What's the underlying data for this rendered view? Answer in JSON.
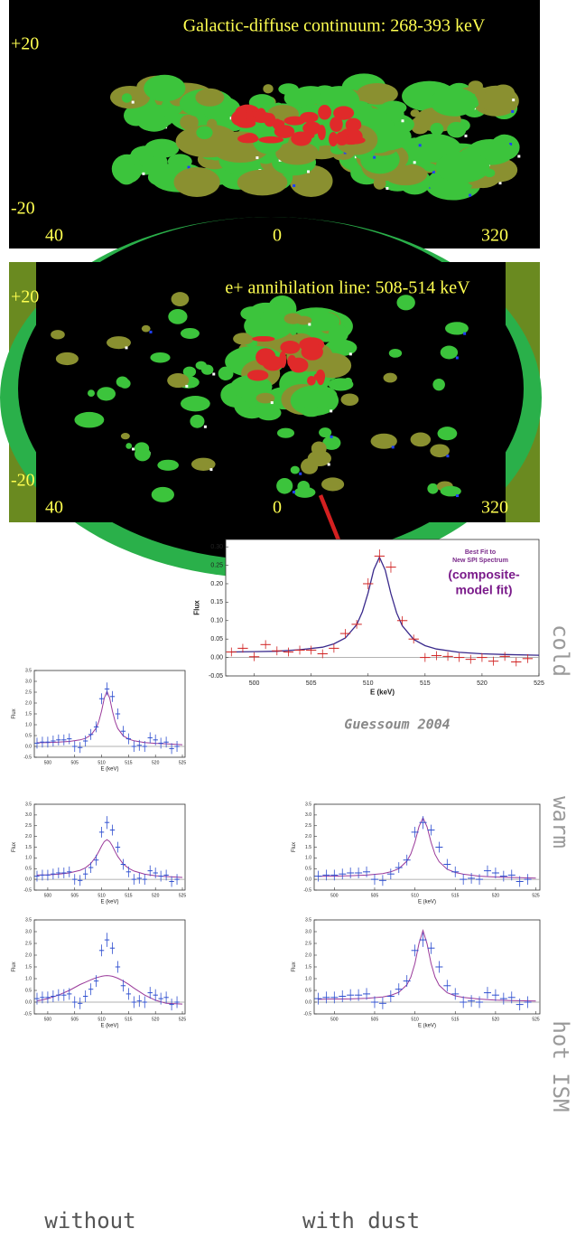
{
  "maps": [
    {
      "title": "Galactic-diffuse continuum: 268-393 keV",
      "lat_labels": [
        "+20",
        "-20"
      ],
      "lon_labels": [
        "40",
        "0",
        "320"
      ]
    },
    {
      "title": "e+ annihilation line: 508-514 keV",
      "lat_labels": [
        "+20",
        "-20"
      ],
      "lon_labels": [
        "40",
        "0",
        "320"
      ]
    }
  ],
  "labels": {
    "credit": "Guessoum 2004",
    "cold": "cold",
    "warm": "warm",
    "hot": "hot ISM",
    "without": "without",
    "with_dust": "with dust"
  },
  "chart_data": [
    {
      "type": "spectrum",
      "title": [
        "Best Fit to",
        "New SPI Spectrum"
      ],
      "annotation": [
        "(composite-",
        "model fit)"
      ],
      "xlabel": "E (keV)",
      "ylabel": "Flux",
      "xlim": [
        497.5,
        525
      ],
      "ylim": [
        -0.05,
        0.32
      ],
      "hline": 0,
      "xticks": [
        500,
        505,
        510,
        515,
        520,
        525
      ],
      "yticks": [
        -0.05,
        {
          "value": 0,
          "label": "0.00"
        },
        0.05,
        {
          "value": 0.1,
          "label": "0.10"
        },
        0.15,
        {
          "value": 0.2,
          "label": "0.20"
        },
        0.25,
        {
          "value": 0.3,
          "label": "0.30"
        }
      ],
      "points": {
        "color": "#d02020",
        "x": [
          498,
          499,
          500,
          501,
          502,
          503,
          504,
          505,
          506,
          507,
          508,
          509,
          510,
          511,
          512,
          513,
          514,
          515,
          516,
          517,
          518,
          519,
          520,
          521,
          522,
          523,
          524
        ],
        "values": [
          0.015,
          0.025,
          0.002,
          0.035,
          0.018,
          0.015,
          0.02,
          0.02,
          0.01,
          0.025,
          0.065,
          0.09,
          0.2,
          0.275,
          0.245,
          0.1,
          0.05,
          0.0,
          0.005,
          0.003,
          0.0,
          -0.005,
          0.0,
          -0.01,
          0.003,
          -0.012,
          -0.003
        ],
        "errors": [
          0.012,
          0.012,
          0.012,
          0.012,
          0.012,
          0.012,
          0.012,
          0.012,
          0.012,
          0.012,
          0.012,
          0.012,
          0.015,
          0.018,
          0.015,
          0.012,
          0.012,
          0.012,
          0.012,
          0.012,
          0.012,
          0.012,
          0.012,
          0.012,
          0.012,
          0.012,
          0.012
        ]
      },
      "curve": {
        "color": "#3a2a8c",
        "x": [
          498,
          500,
          502,
          504,
          506,
          507,
          508,
          509,
          509.5,
          510,
          510.5,
          511,
          511.5,
          512,
          512.5,
          513,
          514,
          515,
          516,
          518,
          520,
          522,
          525
        ],
        "values": [
          0.015,
          0.016,
          0.017,
          0.021,
          0.028,
          0.037,
          0.053,
          0.089,
          0.124,
          0.175,
          0.238,
          0.272,
          0.237,
          0.173,
          0.121,
          0.086,
          0.049,
          0.032,
          0.023,
          0.014,
          0.01,
          0.008,
          0.006
        ]
      }
    },
    {
      "type": "spectrum",
      "xlabel": "E (keV)",
      "ylabel": "Flux",
      "xlim": [
        497.5,
        525.5
      ],
      "ylim": [
        -0.5,
        3.5
      ],
      "hline": 0,
      "xticks": [
        500,
        505,
        510,
        515,
        520,
        525
      ],
      "yticks": [
        -0.5,
        {
          "value": 0,
          "label": "0.0"
        },
        0.5,
        {
          "value": 1,
          "label": "1.0"
        },
        1.5,
        {
          "value": 2,
          "label": "2.0"
        },
        2.5,
        {
          "value": 3,
          "label": "3.0"
        },
        3.5
      ],
      "points": {
        "color": "#3050d0",
        "x": [
          498,
          499,
          500,
          501,
          502,
          503,
          504,
          505,
          506,
          507,
          508,
          509,
          510,
          511,
          512,
          513,
          514,
          515,
          516,
          517,
          518,
          519,
          520,
          521,
          522,
          523,
          524
        ],
        "values": [
          0.15,
          0.2,
          0.2,
          0.25,
          0.3,
          0.3,
          0.35,
          0.0,
          -0.05,
          0.25,
          0.55,
          0.9,
          2.2,
          2.65,
          2.3,
          1.5,
          0.7,
          0.35,
          0.0,
          0.05,
          0.0,
          0.4,
          0.3,
          0.15,
          0.2,
          -0.1,
          0.0
        ],
        "errors": [
          0.25,
          0.25,
          0.25,
          0.25,
          0.25,
          0.25,
          0.25,
          0.25,
          0.25,
          0.25,
          0.25,
          0.25,
          0.25,
          0.3,
          0.25,
          0.25,
          0.25,
          0.25,
          0.25,
          0.25,
          0.25,
          0.25,
          0.25,
          0.25,
          0.25,
          0.25,
          0.25
        ]
      },
      "curve": {
        "color": "#9a3a9a",
        "x": [
          498,
          500,
          502,
          504,
          506,
          507,
          508,
          509,
          509.5,
          510,
          510.5,
          511,
          511.5,
          512,
          512.5,
          513,
          514,
          515,
          516,
          518,
          520,
          522,
          525
        ],
        "values": [
          0.17,
          0.18,
          0.2,
          0.23,
          0.3,
          0.37,
          0.52,
          0.85,
          1.17,
          1.65,
          2.23,
          2.54,
          2.22,
          1.63,
          1.15,
          0.83,
          0.49,
          0.34,
          0.26,
          0.18,
          0.14,
          0.12,
          0.08
        ]
      }
    },
    {
      "type": "spectrum",
      "xlabel": "E (keV)",
      "ylabel": "Flux",
      "xlim": [
        497.5,
        525.5
      ],
      "ylim": [
        -0.5,
        3.5
      ],
      "hline": 0,
      "xticks": [
        500,
        505,
        510,
        515,
        520,
        525
      ],
      "yticks": [
        -0.5,
        {
          "value": 0,
          "label": "0.0"
        },
        0.5,
        {
          "value": 1,
          "label": "1.0"
        },
        1.5,
        {
          "value": 2,
          "label": "2.0"
        },
        2.5,
        {
          "value": 3,
          "label": "3.0"
        },
        3.5
      ],
      "points": {
        "color": "#3050d0",
        "x": [
          498,
          499,
          500,
          501,
          502,
          503,
          504,
          505,
          506,
          507,
          508,
          509,
          510,
          511,
          512,
          513,
          514,
          515,
          516,
          517,
          518,
          519,
          520,
          521,
          522,
          523,
          524
        ],
        "values": [
          0.15,
          0.2,
          0.2,
          0.25,
          0.3,
          0.3,
          0.35,
          0.0,
          -0.05,
          0.25,
          0.55,
          0.9,
          2.2,
          2.65,
          2.3,
          1.5,
          0.7,
          0.35,
          0.0,
          0.05,
          0.0,
          0.4,
          0.3,
          0.15,
          0.2,
          -0.1,
          0.0
        ],
        "errors": [
          0.25,
          0.25,
          0.25,
          0.25,
          0.25,
          0.25,
          0.25,
          0.25,
          0.25,
          0.25,
          0.25,
          0.25,
          0.25,
          0.3,
          0.25,
          0.25,
          0.25,
          0.25,
          0.25,
          0.25,
          0.25,
          0.25,
          0.25,
          0.25,
          0.25,
          0.25,
          0.25
        ]
      },
      "curve": {
        "color": "#9a3a9a",
        "x": [
          498,
          500,
          502,
          504,
          506,
          507,
          508,
          509,
          509.5,
          510,
          510.5,
          511,
          511.5,
          512,
          512.5,
          513,
          514,
          515,
          516,
          518,
          520,
          522,
          525
        ],
        "values": [
          0.2,
          0.21,
          0.24,
          0.3,
          0.42,
          0.54,
          0.74,
          1.08,
          1.31,
          1.56,
          1.76,
          1.85,
          1.76,
          1.55,
          1.3,
          1.07,
          0.72,
          0.52,
          0.39,
          0.24,
          0.17,
          0.13,
          0.09
        ]
      }
    },
    {
      "type": "spectrum",
      "xlabel": "E (keV)",
      "ylabel": "Flux",
      "xlim": [
        497.5,
        525.5
      ],
      "ylim": [
        -0.5,
        3.5
      ],
      "hline": 0,
      "xticks": [
        500,
        505,
        510,
        515,
        520,
        525
      ],
      "yticks": [
        -0.5,
        {
          "value": 0,
          "label": "0.0"
        },
        0.5,
        {
          "value": 1,
          "label": "1.0"
        },
        1.5,
        {
          "value": 2,
          "label": "2.0"
        },
        2.5,
        {
          "value": 3,
          "label": "3.0"
        },
        3.5
      ],
      "points": {
        "color": "#3050d0",
        "x": [
          498,
          499,
          500,
          501,
          502,
          503,
          504,
          505,
          506,
          507,
          508,
          509,
          510,
          511,
          512,
          513,
          514,
          515,
          516,
          517,
          518,
          519,
          520,
          521,
          522,
          523,
          524
        ],
        "values": [
          0.15,
          0.2,
          0.2,
          0.25,
          0.3,
          0.3,
          0.35,
          0.0,
          -0.05,
          0.25,
          0.55,
          0.9,
          2.2,
          2.65,
          2.3,
          1.5,
          0.7,
          0.35,
          0.0,
          0.05,
          0.0,
          0.4,
          0.3,
          0.15,
          0.2,
          -0.1,
          0.0
        ],
        "errors": [
          0.25,
          0.25,
          0.25,
          0.25,
          0.25,
          0.25,
          0.25,
          0.25,
          0.25,
          0.25,
          0.25,
          0.25,
          0.25,
          0.3,
          0.25,
          0.25,
          0.25,
          0.25,
          0.25,
          0.25,
          0.25,
          0.25,
          0.25,
          0.25,
          0.25,
          0.25,
          0.25
        ]
      },
      "curve": {
        "color": "#9a3a9a",
        "x": [
          498,
          500,
          502,
          504,
          506,
          507,
          508,
          509,
          509.5,
          510,
          510.5,
          511,
          511.5,
          512,
          512.5,
          513,
          514,
          515,
          516,
          518,
          520,
          522,
          525
        ],
        "values": [
          0.14,
          0.15,
          0.17,
          0.2,
          0.27,
          0.35,
          0.5,
          0.85,
          1.19,
          1.74,
          2.46,
          2.87,
          2.45,
          1.72,
          1.16,
          0.82,
          0.47,
          0.32,
          0.24,
          0.15,
          0.11,
          0.09,
          0.06
        ]
      }
    },
    {
      "type": "spectrum",
      "xlabel": "E (keV)",
      "ylabel": "Flux",
      "xlim": [
        497.5,
        525.5
      ],
      "ylim": [
        -0.5,
        3.5
      ],
      "hline": 0,
      "xticks": [
        500,
        505,
        510,
        515,
        520,
        525
      ],
      "yticks": [
        -0.5,
        {
          "value": 0,
          "label": "0.0"
        },
        0.5,
        {
          "value": 1,
          "label": "1.0"
        },
        1.5,
        {
          "value": 2,
          "label": "2.0"
        },
        2.5,
        {
          "value": 3,
          "label": "3.0"
        },
        3.5
      ],
      "points": {
        "color": "#3050d0",
        "x": [
          498,
          499,
          500,
          501,
          502,
          503,
          504,
          505,
          506,
          507,
          508,
          509,
          510,
          511,
          512,
          513,
          514,
          515,
          516,
          517,
          518,
          519,
          520,
          521,
          522,
          523,
          524
        ],
        "values": [
          0.15,
          0.2,
          0.2,
          0.25,
          0.3,
          0.3,
          0.35,
          0.0,
          -0.05,
          0.25,
          0.55,
          0.9,
          2.2,
          2.65,
          2.3,
          1.5,
          0.7,
          0.35,
          0.0,
          0.05,
          0.0,
          0.4,
          0.3,
          0.15,
          0.2,
          -0.1,
          0.0
        ],
        "errors": [
          0.25,
          0.25,
          0.25,
          0.25,
          0.25,
          0.25,
          0.25,
          0.25,
          0.25,
          0.25,
          0.25,
          0.25,
          0.25,
          0.3,
          0.25,
          0.25,
          0.25,
          0.25,
          0.25,
          0.25,
          0.25,
          0.25,
          0.25,
          0.25,
          0.25,
          0.25,
          0.25
        ]
      },
      "curve": {
        "color": "#9a3a9a",
        "x": [
          498,
          500,
          502,
          504,
          506,
          507,
          508,
          509,
          509.5,
          510,
          510.5,
          511,
          511.5,
          512,
          512.5,
          513,
          514,
          515,
          516,
          518,
          520,
          522,
          525
        ],
        "values": [
          0.05,
          0.15,
          0.3,
          0.5,
          0.75,
          0.85,
          0.95,
          1.04,
          1.07,
          1.1,
          1.12,
          1.13,
          1.12,
          1.1,
          1.06,
          1.02,
          0.9,
          0.76,
          0.6,
          0.3,
          0.08,
          -0.05,
          -0.08
        ]
      }
    },
    {
      "type": "spectrum",
      "xlabel": "E (keV)",
      "ylabel": "Flux",
      "xlim": [
        497.5,
        525.5
      ],
      "ylim": [
        -0.5,
        3.5
      ],
      "hline": 0,
      "xticks": [
        500,
        505,
        510,
        515,
        520,
        525
      ],
      "yticks": [
        -0.5,
        {
          "value": 0,
          "label": "0.0"
        },
        0.5,
        {
          "value": 1,
          "label": "1.0"
        },
        1.5,
        {
          "value": 2,
          "label": "2.0"
        },
        2.5,
        {
          "value": 3,
          "label": "3.0"
        },
        3.5
      ],
      "points": {
        "color": "#3050d0",
        "x": [
          498,
          499,
          500,
          501,
          502,
          503,
          504,
          505,
          506,
          507,
          508,
          509,
          510,
          511,
          512,
          513,
          514,
          515,
          516,
          517,
          518,
          519,
          520,
          521,
          522,
          523,
          524
        ],
        "values": [
          0.15,
          0.2,
          0.2,
          0.25,
          0.3,
          0.3,
          0.35,
          0.0,
          -0.05,
          0.25,
          0.55,
          0.9,
          2.2,
          2.65,
          2.3,
          1.5,
          0.7,
          0.35,
          0.0,
          0.05,
          0.0,
          0.4,
          0.3,
          0.15,
          0.2,
          -0.1,
          0.0
        ],
        "errors": [
          0.25,
          0.25,
          0.25,
          0.25,
          0.25,
          0.25,
          0.25,
          0.25,
          0.25,
          0.25,
          0.25,
          0.25,
          0.25,
          0.3,
          0.25,
          0.25,
          0.25,
          0.25,
          0.25,
          0.25,
          0.25,
          0.25,
          0.25,
          0.25,
          0.25,
          0.25,
          0.25
        ]
      },
      "curve": {
        "color": "#9a3a9a",
        "x": [
          498,
          500,
          502,
          504,
          506,
          507,
          508,
          509,
          509.5,
          510,
          510.5,
          511,
          511.5,
          512,
          512.5,
          513,
          514,
          515,
          516,
          518,
          520,
          522,
          525
        ],
        "values": [
          0.12,
          0.13,
          0.14,
          0.16,
          0.22,
          0.29,
          0.42,
          0.74,
          1.07,
          1.65,
          2.5,
          3.05,
          2.49,
          1.64,
          1.06,
          0.72,
          0.4,
          0.27,
          0.2,
          0.13,
          0.09,
          0.07,
          0.05
        ]
      }
    }
  ]
}
